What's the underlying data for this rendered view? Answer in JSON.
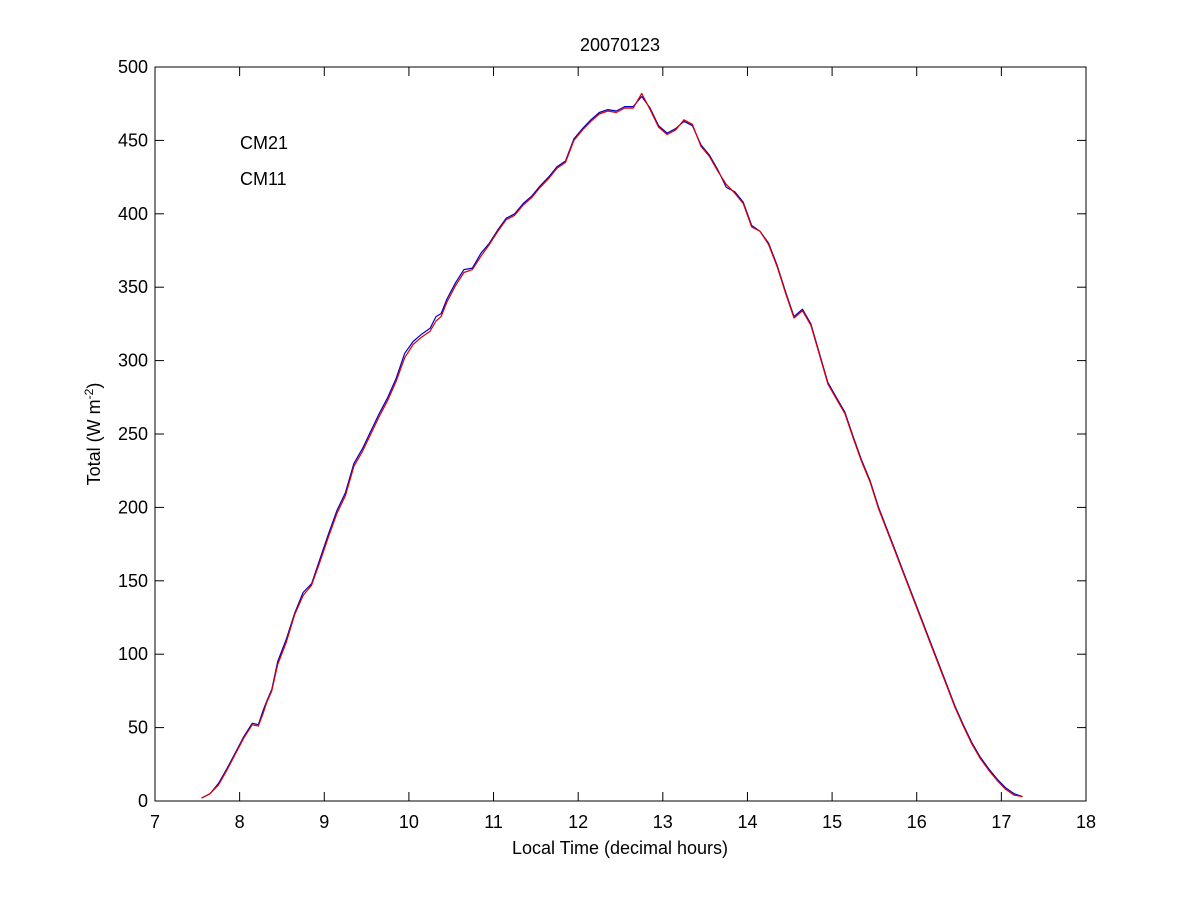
{
  "chart_data": {
    "type": "line",
    "title": "20070123",
    "xlabel": "Local Time (decimal hours)",
    "ylabel_main": "Total (W m",
    "ylabel_exp": "-2",
    "ylabel_close": ")",
    "xlim": [
      7,
      18
    ],
    "ylim": [
      0,
      500
    ],
    "xticks": [
      7,
      8,
      9,
      10,
      11,
      12,
      13,
      14,
      15,
      16,
      17,
      18
    ],
    "yticks": [
      0,
      50,
      100,
      150,
      200,
      250,
      300,
      350,
      400,
      450,
      500
    ],
    "grid": false,
    "legend_position": "top-left",
    "series": [
      {
        "name": "CM21",
        "color": "#0000cc",
        "x": [
          7.55,
          7.65,
          7.75,
          7.85,
          7.95,
          8.05,
          8.15,
          8.22,
          8.28,
          8.32,
          8.38,
          8.45,
          8.55,
          8.65,
          8.75,
          8.85,
          8.95,
          9.05,
          9.15,
          9.25,
          9.35,
          9.45,
          9.55,
          9.65,
          9.75,
          9.85,
          9.95,
          10.05,
          10.15,
          10.25,
          10.32,
          10.38,
          10.45,
          10.55,
          10.65,
          10.75,
          10.85,
          10.95,
          11.05,
          11.15,
          11.25,
          11.35,
          11.45,
          11.55,
          11.65,
          11.75,
          11.85,
          11.95,
          12.05,
          12.15,
          12.25,
          12.35,
          12.45,
          12.55,
          12.65,
          12.75,
          12.85,
          12.95,
          13.05,
          13.15,
          13.25,
          13.35,
          13.45,
          13.55,
          13.65,
          13.75,
          13.85,
          13.95,
          14.05,
          14.15,
          14.25,
          14.35,
          14.45,
          14.55,
          14.65,
          14.75,
          14.85,
          14.95,
          15.05,
          15.15,
          15.25,
          15.35,
          15.45,
          15.55,
          15.65,
          15.75,
          15.85,
          15.95,
          16.05,
          16.15,
          16.25,
          16.35,
          16.45,
          16.55,
          16.65,
          16.75,
          16.85,
          16.95,
          17.05,
          17.15,
          17.25
        ],
        "y": [
          2,
          5,
          12,
          22,
          33,
          44,
          53,
          52,
          62,
          68,
          76,
          95,
          110,
          128,
          142,
          148,
          165,
          182,
          198,
          210,
          230,
          240,
          252,
          264,
          275,
          288,
          305,
          313,
          318,
          322,
          330,
          332,
          342,
          353,
          362,
          363,
          373,
          380,
          389,
          397,
          400,
          407,
          412,
          419,
          425,
          432,
          436,
          451,
          458,
          464,
          469,
          471,
          470,
          473,
          473,
          480,
          472,
          460,
          455,
          458,
          463,
          460,
          447,
          440,
          430,
          418,
          415,
          408,
          392,
          388,
          380,
          365,
          347,
          330,
          335,
          325,
          305,
          285,
          275,
          265,
          248,
          232,
          218,
          200,
          185,
          170,
          155,
          140,
          125,
          110,
          95,
          80,
          65,
          52,
          40,
          30,
          22,
          15,
          9,
          5,
          3
        ]
      },
      {
        "name": "CM11",
        "color": "#dd0000",
        "x": [
          7.55,
          7.65,
          7.75,
          7.85,
          7.95,
          8.05,
          8.15,
          8.22,
          8.28,
          8.32,
          8.38,
          8.45,
          8.55,
          8.65,
          8.75,
          8.85,
          8.95,
          9.05,
          9.15,
          9.25,
          9.35,
          9.45,
          9.55,
          9.65,
          9.75,
          9.85,
          9.95,
          10.05,
          10.15,
          10.25,
          10.32,
          10.38,
          10.45,
          10.55,
          10.65,
          10.75,
          10.85,
          10.95,
          11.05,
          11.15,
          11.25,
          11.35,
          11.45,
          11.55,
          11.65,
          11.75,
          11.85,
          11.95,
          12.05,
          12.15,
          12.25,
          12.35,
          12.45,
          12.55,
          12.65,
          12.75,
          12.85,
          12.95,
          13.05,
          13.15,
          13.25,
          13.35,
          13.45,
          13.55,
          13.65,
          13.75,
          13.85,
          13.95,
          14.05,
          14.15,
          14.25,
          14.35,
          14.45,
          14.55,
          14.65,
          14.75,
          14.85,
          14.95,
          15.05,
          15.15,
          15.25,
          15.35,
          15.45,
          15.55,
          15.65,
          15.75,
          15.85,
          15.95,
          16.05,
          16.15,
          16.25,
          16.35,
          16.45,
          16.55,
          16.65,
          16.75,
          16.85,
          16.95,
          17.05,
          17.15,
          17.25
        ],
        "y": [
          2,
          5,
          11,
          21,
          32,
          43,
          52,
          51,
          60,
          67,
          75,
          93,
          108,
          127,
          140,
          147,
          163,
          180,
          196,
          208,
          228,
          238,
          250,
          262,
          273,
          286,
          302,
          311,
          316,
          320,
          327,
          330,
          340,
          351,
          360,
          362,
          371,
          379,
          388,
          396,
          399,
          406,
          411,
          418,
          424,
          431,
          435,
          450,
          457,
          463,
          468,
          470,
          469,
          472,
          472,
          482,
          471,
          459,
          454,
          457,
          464,
          461,
          446,
          439,
          429,
          420,
          414,
          407,
          391,
          388,
          379,
          364,
          346,
          329,
          334,
          324,
          304,
          284,
          274,
          264,
          247,
          231,
          217,
          199,
          184,
          169,
          154,
          139,
          124,
          109,
          94,
          79,
          64,
          51,
          39,
          29,
          21,
          14,
          8,
          4,
          3
        ]
      }
    ]
  }
}
